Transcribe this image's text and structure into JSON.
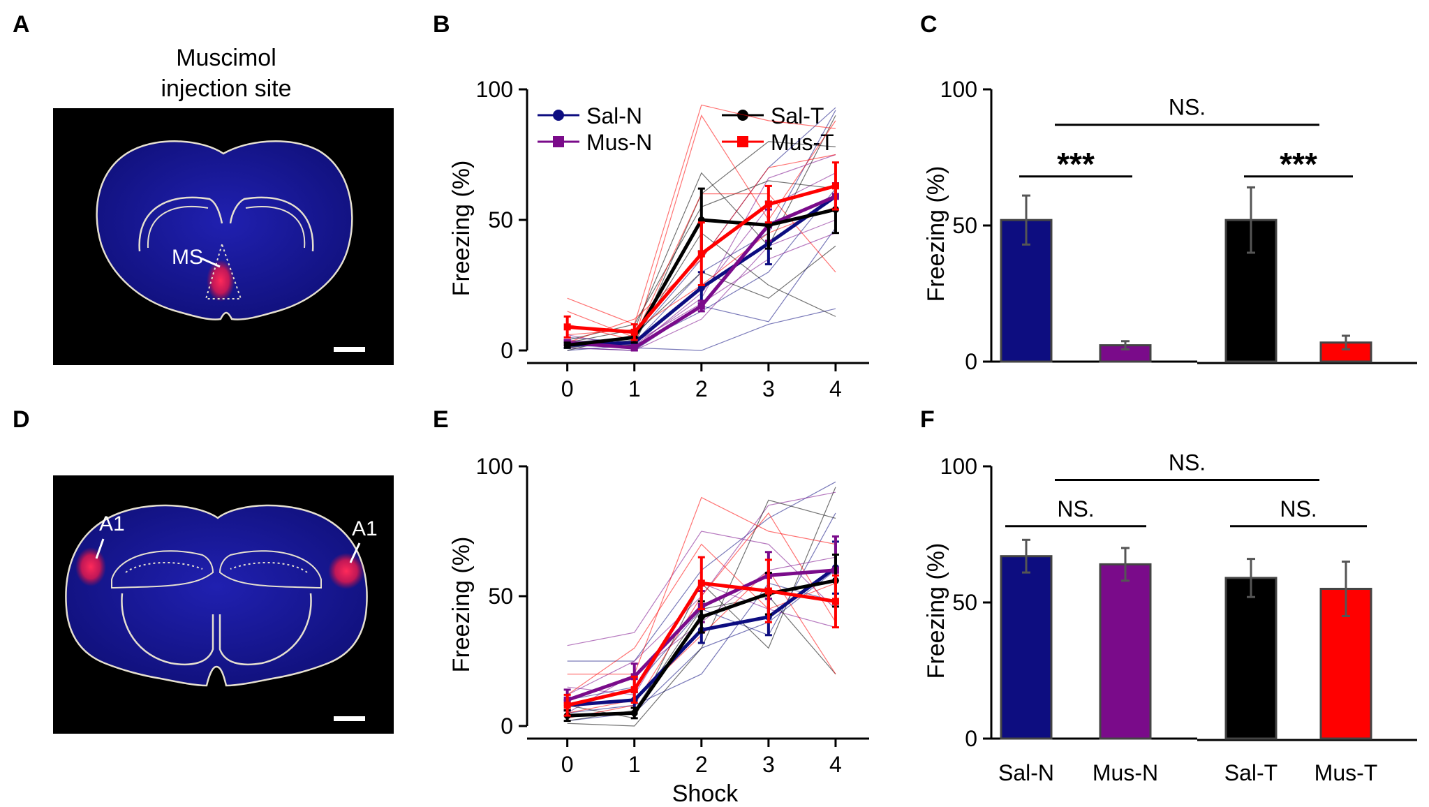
{
  "colors": {
    "sal_n": "#0d0d80",
    "mus_n": "#7a0b8a",
    "sal_t": "#000000",
    "mus_t": "#ff0000",
    "brain_bg": "#000000",
    "brain_fill": "#1a1a9e",
    "injection": "#ff1f55"
  },
  "panels": {
    "A": {
      "letter": "A",
      "title_line1": "Muscimol",
      "title_line2": "injection site",
      "region_label": "MS"
    },
    "D": {
      "letter": "D",
      "region_label_left": "A1",
      "region_label_right": "A1"
    },
    "B": {
      "letter": "B"
    },
    "C": {
      "letter": "C"
    },
    "E": {
      "letter": "E"
    },
    "F": {
      "letter": "F"
    }
  },
  "legend": {
    "sal_n": "Sal-N",
    "mus_n": "Mus-N",
    "sal_t": "Sal-T",
    "mus_t": "Mus-T"
  },
  "chart_data": [
    {
      "id": "B",
      "type": "line",
      "ylabel": "Freezing (%)",
      "xlabel": "",
      "x": [
        0,
        1,
        2,
        3,
        4
      ],
      "xlim": [
        -0.6,
        4.5
      ],
      "ylim": [
        0,
        100
      ],
      "yticks": [
        0,
        50,
        100
      ],
      "series": [
        {
          "name": "Sal-N",
          "color_key": "sal_n",
          "marker": "circle",
          "values": [
            2,
            3,
            24,
            41,
            59
          ],
          "errors": [
            1,
            2,
            6,
            8,
            5
          ]
        },
        {
          "name": "Mus-N",
          "color_key": "mus_n",
          "marker": "square",
          "values": [
            3,
            1,
            17,
            48,
            59
          ],
          "errors": [
            1,
            1,
            2,
            6,
            5
          ]
        },
        {
          "name": "Sal-T",
          "color_key": "sal_t",
          "marker": "circle",
          "values": [
            2,
            5,
            50,
            48,
            54
          ],
          "errors": [
            1,
            2,
            12,
            9,
            9
          ]
        },
        {
          "name": "Mus-T",
          "color_key": "mus_t",
          "marker": "square",
          "values": [
            9,
            7,
            37,
            56,
            63
          ],
          "errors": [
            4,
            3,
            12,
            7,
            9
          ]
        }
      ],
      "individual": [
        {
          "color_key": "sal_n",
          "values": [
            5,
            3,
            30,
            45,
            92
          ]
        },
        {
          "color_key": "sal_n",
          "values": [
            1,
            0,
            17,
            11,
            47
          ]
        },
        {
          "color_key": "sal_n",
          "values": [
            2,
            1,
            0,
            10,
            16
          ]
        },
        {
          "color_key": "sal_n",
          "values": [
            3,
            5,
            35,
            70,
            93
          ]
        },
        {
          "color_key": "sal_n",
          "values": [
            0,
            2,
            15,
            30,
            62
          ]
        },
        {
          "color_key": "mus_n",
          "values": [
            4,
            2,
            20,
            66,
            75
          ]
        },
        {
          "color_key": "mus_n",
          "values": [
            1,
            0,
            12,
            40,
            50
          ]
        },
        {
          "color_key": "mus_n",
          "values": [
            6,
            1,
            22,
            55,
            68
          ]
        },
        {
          "color_key": "mus_n",
          "values": [
            2,
            3,
            18,
            35,
            45
          ]
        },
        {
          "color_key": "sal_t",
          "values": [
            3,
            8,
            68,
            40,
            90
          ]
        },
        {
          "color_key": "sal_t",
          "values": [
            1,
            4,
            45,
            25,
            13
          ]
        },
        {
          "color_key": "sal_t",
          "values": [
            2,
            2,
            60,
            80,
            78
          ]
        },
        {
          "color_key": "sal_t",
          "values": [
            0,
            6,
            30,
            20,
            40
          ]
        },
        {
          "color_key": "sal_t",
          "values": [
            4,
            10,
            55,
            65,
            62
          ]
        },
        {
          "color_key": "mus_t",
          "values": [
            20,
            10,
            94,
            88,
            85
          ]
        },
        {
          "color_key": "mus_t",
          "values": [
            15,
            5,
            60,
            60,
            30
          ]
        },
        {
          "color_key": "mus_t",
          "values": [
            3,
            12,
            35,
            70,
            75
          ]
        },
        {
          "color_key": "mus_t",
          "values": [
            10,
            4,
            90,
            50,
            88
          ]
        },
        {
          "color_key": "mus_t",
          "values": [
            6,
            8,
            25,
            45,
            55
          ]
        }
      ]
    },
    {
      "id": "C",
      "type": "bar",
      "ylabel": "Freezing (%)",
      "categories": [
        "Sal-N",
        "Mus-N",
        "Sal-T",
        "Mus-T"
      ],
      "show_category_labels": false,
      "values": [
        52,
        6,
        52,
        7
      ],
      "errors": [
        9,
        1.5,
        12,
        2.5
      ],
      "color_keys": [
        "sal_n",
        "mus_n",
        "sal_t",
        "mus_t"
      ],
      "ylim": [
        0,
        100
      ],
      "yticks": [
        0,
        50,
        100
      ],
      "annotations": [
        {
          "text": "***",
          "from": 0,
          "to": 1,
          "level": 68
        },
        {
          "text": "***",
          "from": 2,
          "to": 3,
          "level": 68
        },
        {
          "text": "NS.",
          "from": 0.5,
          "to": 2.5,
          "level": 87
        }
      ]
    },
    {
      "id": "E",
      "type": "line",
      "ylabel": "Freezing (%)",
      "xlabel": "Shock",
      "x": [
        0,
        1,
        2,
        3,
        4
      ],
      "xlim": [
        -0.6,
        4.5
      ],
      "ylim": [
        0,
        100
      ],
      "yticks": [
        0,
        50,
        100
      ],
      "series": [
        {
          "name": "Sal-N",
          "color_key": "sal_n",
          "marker": "circle",
          "values": [
            8,
            10,
            37,
            42,
            61
          ],
          "errors": [
            2,
            3,
            5,
            7,
            10
          ]
        },
        {
          "name": "Mus-N",
          "color_key": "mus_n",
          "marker": "square",
          "values": [
            10,
            19,
            46,
            58,
            60
          ],
          "errors": [
            4,
            5,
            6,
            9,
            13
          ]
        },
        {
          "name": "Sal-T",
          "color_key": "sal_t",
          "marker": "circle",
          "values": [
            4,
            5,
            42,
            51,
            56
          ],
          "errors": [
            2,
            2,
            6,
            8,
            10
          ]
        },
        {
          "name": "Mus-T",
          "color_key": "mus_t",
          "marker": "square",
          "values": [
            8,
            14,
            55,
            52,
            48
          ],
          "errors": [
            4,
            5,
            10,
            12,
            10
          ]
        }
      ],
      "individual": [
        {
          "color_key": "sal_n",
          "values": [
            25,
            25,
            60,
            80,
            94
          ]
        },
        {
          "color_key": "sal_n",
          "values": [
            2,
            5,
            30,
            40,
            60
          ]
        },
        {
          "color_key": "sal_n",
          "values": [
            10,
            15,
            45,
            35,
            82
          ]
        },
        {
          "color_key": "sal_n",
          "values": [
            5,
            8,
            20,
            55,
            48
          ]
        },
        {
          "color_key": "mus_n",
          "values": [
            31,
            36,
            75,
            70,
            45
          ]
        },
        {
          "color_key": "mus_n",
          "values": [
            12,
            25,
            50,
            85,
            90
          ]
        },
        {
          "color_key": "mus_n",
          "values": [
            5,
            20,
            40,
            60,
            65
          ]
        },
        {
          "color_key": "mus_n",
          "values": [
            15,
            12,
            55,
            45,
            38
          ]
        },
        {
          "color_key": "sal_t",
          "values": [
            1,
            0,
            30,
            87,
            80
          ]
        },
        {
          "color_key": "sal_t",
          "values": [
            8,
            3,
            55,
            30,
            92
          ]
        },
        {
          "color_key": "sal_t",
          "values": [
            2,
            6,
            45,
            50,
            20
          ]
        },
        {
          "color_key": "mus_t",
          "values": [
            20,
            20,
            88,
            75,
            70
          ]
        },
        {
          "color_key": "mus_t",
          "values": [
            5,
            10,
            35,
            60,
            20
          ]
        },
        {
          "color_key": "mus_t",
          "values": [
            12,
            30,
            70,
            45,
            55
          ]
        },
        {
          "color_key": "mus_t",
          "values": [
            3,
            8,
            50,
            82,
            40
          ]
        }
      ]
    },
    {
      "id": "F",
      "type": "bar",
      "ylabel": "Freezing (%)",
      "categories": [
        "Sal-N",
        "Mus-N",
        "Sal-T",
        "Mus-T"
      ],
      "show_category_labels": true,
      "values": [
        67,
        64,
        59,
        55
      ],
      "errors": [
        6,
        6,
        7,
        10
      ],
      "color_keys": [
        "sal_n",
        "mus_n",
        "sal_t",
        "mus_t"
      ],
      "ylim": [
        0,
        100
      ],
      "yticks": [
        0,
        50,
        100
      ],
      "annotations": [
        {
          "text": "NS.",
          "from": 0,
          "to": 1,
          "level": 78
        },
        {
          "text": "NS.",
          "from": 2,
          "to": 3,
          "level": 78
        },
        {
          "text": "NS.",
          "from": 0.5,
          "to": 2.5,
          "level": 95
        }
      ]
    }
  ]
}
